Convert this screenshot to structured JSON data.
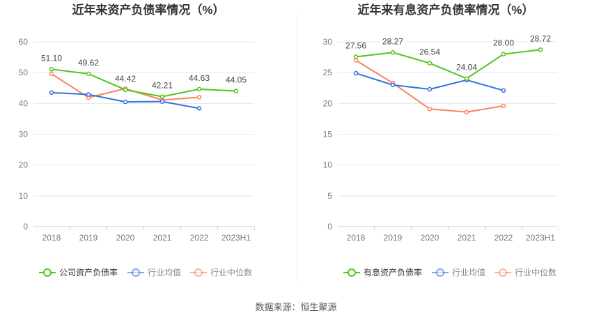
{
  "chart_data": [
    {
      "type": "line",
      "title": "近年来资产负债率情况（%）",
      "categories": [
        "2018",
        "2019",
        "2020",
        "2021",
        "2022",
        "2023H1"
      ],
      "ylim": [
        0,
        60
      ],
      "yticks": [
        0,
        10,
        20,
        30,
        40,
        50,
        60
      ],
      "series": [
        {
          "name": "公司资产负债率",
          "color": "#52c41a",
          "values": [
            51.1,
            49.62,
            44.42,
            42.21,
            44.63,
            44.05
          ],
          "labels": [
            "51.10",
            "49.62",
            "44.42",
            "42.21",
            "44.63",
            "44.05"
          ]
        },
        {
          "name": "行业均值",
          "color": "#3271e0",
          "values": [
            43.5,
            42.9,
            40.5,
            40.6,
            38.4,
            null
          ]
        },
        {
          "name": "行业中位数",
          "color": "#f5845a",
          "values": [
            49.6,
            41.9,
            44.8,
            41.1,
            42.0,
            null
          ]
        }
      ],
      "legend": "bottom",
      "grid": true
    },
    {
      "type": "line",
      "title": "近年来有息资产负债率情况（%）",
      "categories": [
        "2018",
        "2019",
        "2020",
        "2021",
        "2022",
        "2023H1"
      ],
      "ylim": [
        0,
        30
      ],
      "yticks": [
        0,
        5,
        10,
        15,
        20,
        25,
        30
      ],
      "series": [
        {
          "name": "有息资产负债率",
          "color": "#52c41a",
          "values": [
            27.56,
            28.27,
            26.54,
            24.04,
            28.0,
            28.72
          ],
          "labels": [
            "27.56",
            "28.27",
            "26.54",
            "24.04",
            "28.00",
            "28.72"
          ]
        },
        {
          "name": "行业均值",
          "color": "#3271e0",
          "values": [
            24.9,
            23.0,
            22.3,
            23.8,
            22.1,
            null
          ]
        },
        {
          "name": "行业中位数",
          "color": "#f5845a",
          "values": [
            27.0,
            23.3,
            19.1,
            18.6,
            19.6,
            null
          ]
        }
      ],
      "legend": "bottom",
      "grid": true
    }
  ],
  "source": "数据来源：恒生聚源"
}
